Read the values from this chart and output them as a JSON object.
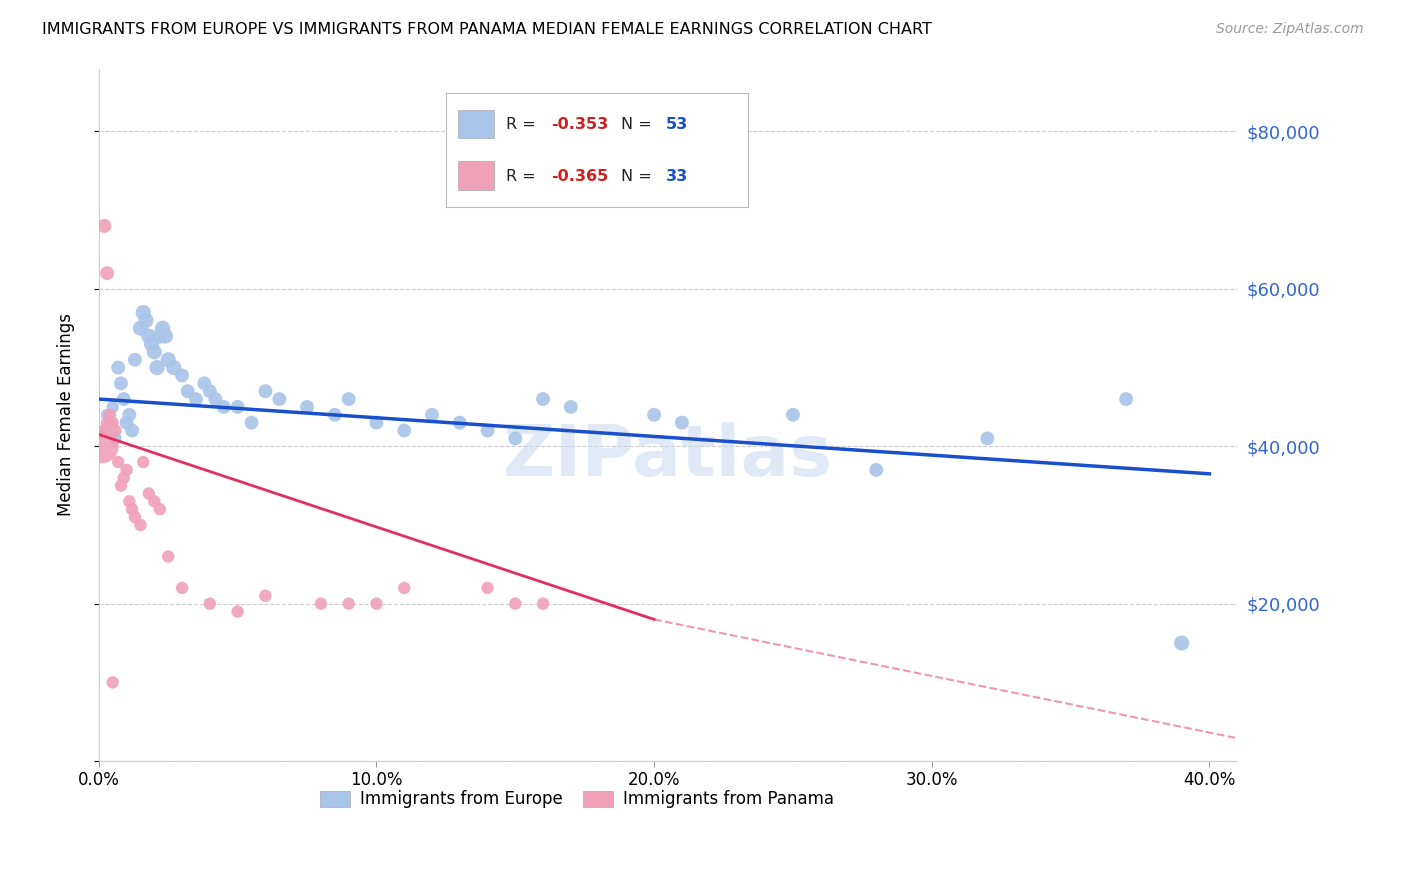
{
  "title": "IMMIGRANTS FROM EUROPE VS IMMIGRANTS FROM PANAMA MEDIAN FEMALE EARNINGS CORRELATION CHART",
  "source": "Source: ZipAtlas.com",
  "ylabel": "Median Female Earnings",
  "europe_color": "#a8c4e8",
  "europe_line_color": "#1a4fcc",
  "panama_color": "#f0a0b8",
  "panama_line_color": "#e03060",
  "watermark": "ZIPatlas",
  "europe_points": [
    [
      0.002,
      42000
    ],
    [
      0.003,
      44000
    ],
    [
      0.004,
      43000
    ],
    [
      0.005,
      45000
    ],
    [
      0.006,
      41000
    ],
    [
      0.007,
      50000
    ],
    [
      0.008,
      48000
    ],
    [
      0.009,
      46000
    ],
    [
      0.01,
      43000
    ],
    [
      0.011,
      44000
    ],
    [
      0.012,
      42000
    ],
    [
      0.013,
      51000
    ],
    [
      0.015,
      55000
    ],
    [
      0.016,
      57000
    ],
    [
      0.017,
      56000
    ],
    [
      0.018,
      54000
    ],
    [
      0.019,
      53000
    ],
    [
      0.02,
      52000
    ],
    [
      0.021,
      50000
    ],
    [
      0.022,
      54000
    ],
    [
      0.023,
      55000
    ],
    [
      0.024,
      54000
    ],
    [
      0.025,
      51000
    ],
    [
      0.027,
      50000
    ],
    [
      0.03,
      49000
    ],
    [
      0.032,
      47000
    ],
    [
      0.035,
      46000
    ],
    [
      0.038,
      48000
    ],
    [
      0.04,
      47000
    ],
    [
      0.042,
      46000
    ],
    [
      0.045,
      45000
    ],
    [
      0.05,
      45000
    ],
    [
      0.055,
      43000
    ],
    [
      0.06,
      47000
    ],
    [
      0.065,
      46000
    ],
    [
      0.075,
      45000
    ],
    [
      0.085,
      44000
    ],
    [
      0.09,
      46000
    ],
    [
      0.1,
      43000
    ],
    [
      0.11,
      42000
    ],
    [
      0.12,
      44000
    ],
    [
      0.13,
      43000
    ],
    [
      0.14,
      42000
    ],
    [
      0.15,
      41000
    ],
    [
      0.16,
      46000
    ],
    [
      0.17,
      45000
    ],
    [
      0.2,
      44000
    ],
    [
      0.21,
      43000
    ],
    [
      0.25,
      44000
    ],
    [
      0.28,
      37000
    ],
    [
      0.32,
      41000
    ],
    [
      0.37,
      46000
    ],
    [
      0.39,
      15000
    ]
  ],
  "europe_sizes": [
    80,
    80,
    80,
    80,
    80,
    100,
    100,
    100,
    100,
    100,
    100,
    100,
    120,
    120,
    120,
    120,
    120,
    120,
    120,
    120,
    120,
    120,
    120,
    120,
    100,
    100,
    100,
    100,
    100,
    100,
    100,
    100,
    100,
    100,
    100,
    100,
    100,
    100,
    100,
    100,
    100,
    100,
    100,
    100,
    100,
    100,
    100,
    100,
    100,
    100,
    100,
    100,
    120
  ],
  "panama_points": [
    [
      0.001,
      40000
    ],
    [
      0.002,
      42000
    ],
    [
      0.003,
      43000
    ],
    [
      0.004,
      44000
    ],
    [
      0.005,
      43000
    ],
    [
      0.006,
      42000
    ],
    [
      0.007,
      38000
    ],
    [
      0.008,
      35000
    ],
    [
      0.009,
      36000
    ],
    [
      0.01,
      37000
    ],
    [
      0.011,
      33000
    ],
    [
      0.012,
      32000
    ],
    [
      0.013,
      31000
    ],
    [
      0.015,
      30000
    ],
    [
      0.016,
      38000
    ],
    [
      0.018,
      34000
    ],
    [
      0.02,
      33000
    ],
    [
      0.022,
      32000
    ],
    [
      0.025,
      26000
    ],
    [
      0.03,
      22000
    ],
    [
      0.04,
      20000
    ],
    [
      0.05,
      19000
    ],
    [
      0.06,
      21000
    ],
    [
      0.08,
      20000
    ],
    [
      0.09,
      20000
    ],
    [
      0.1,
      20000
    ],
    [
      0.11,
      22000
    ],
    [
      0.14,
      22000
    ],
    [
      0.15,
      20000
    ],
    [
      0.16,
      20000
    ],
    [
      0.002,
      68000
    ],
    [
      0.003,
      62000
    ],
    [
      0.005,
      10000
    ]
  ],
  "panama_sizes": [
    600,
    80,
    80,
    80,
    80,
    80,
    80,
    80,
    80,
    80,
    80,
    80,
    80,
    80,
    80,
    80,
    80,
    80,
    80,
    80,
    80,
    80,
    80,
    80,
    80,
    80,
    80,
    80,
    80,
    80,
    100,
    100,
    80
  ],
  "xlim": [
    0.0,
    0.41
  ],
  "ylim": [
    0,
    88000
  ],
  "xticks": [
    0.0,
    0.1,
    0.2,
    0.3,
    0.4
  ],
  "xtick_labels": [
    "0.0%",
    "10.0%",
    "20.0%",
    "30.0%",
    "40.0%"
  ],
  "yticks": [
    0,
    20000,
    40000,
    60000,
    80000
  ],
  "ytick_labels_right": [
    "",
    "$20,000",
    "$40,000",
    "$60,000",
    "$80,000"
  ],
  "europe_line": [
    [
      0.0,
      46000
    ],
    [
      0.4,
      36500
    ]
  ],
  "panama_line_solid": [
    [
      0.0,
      41500
    ],
    [
      0.2,
      18000
    ]
  ],
  "panama_line_dashed": [
    [
      0.2,
      18000
    ],
    [
      0.52,
      -5000
    ]
  ]
}
